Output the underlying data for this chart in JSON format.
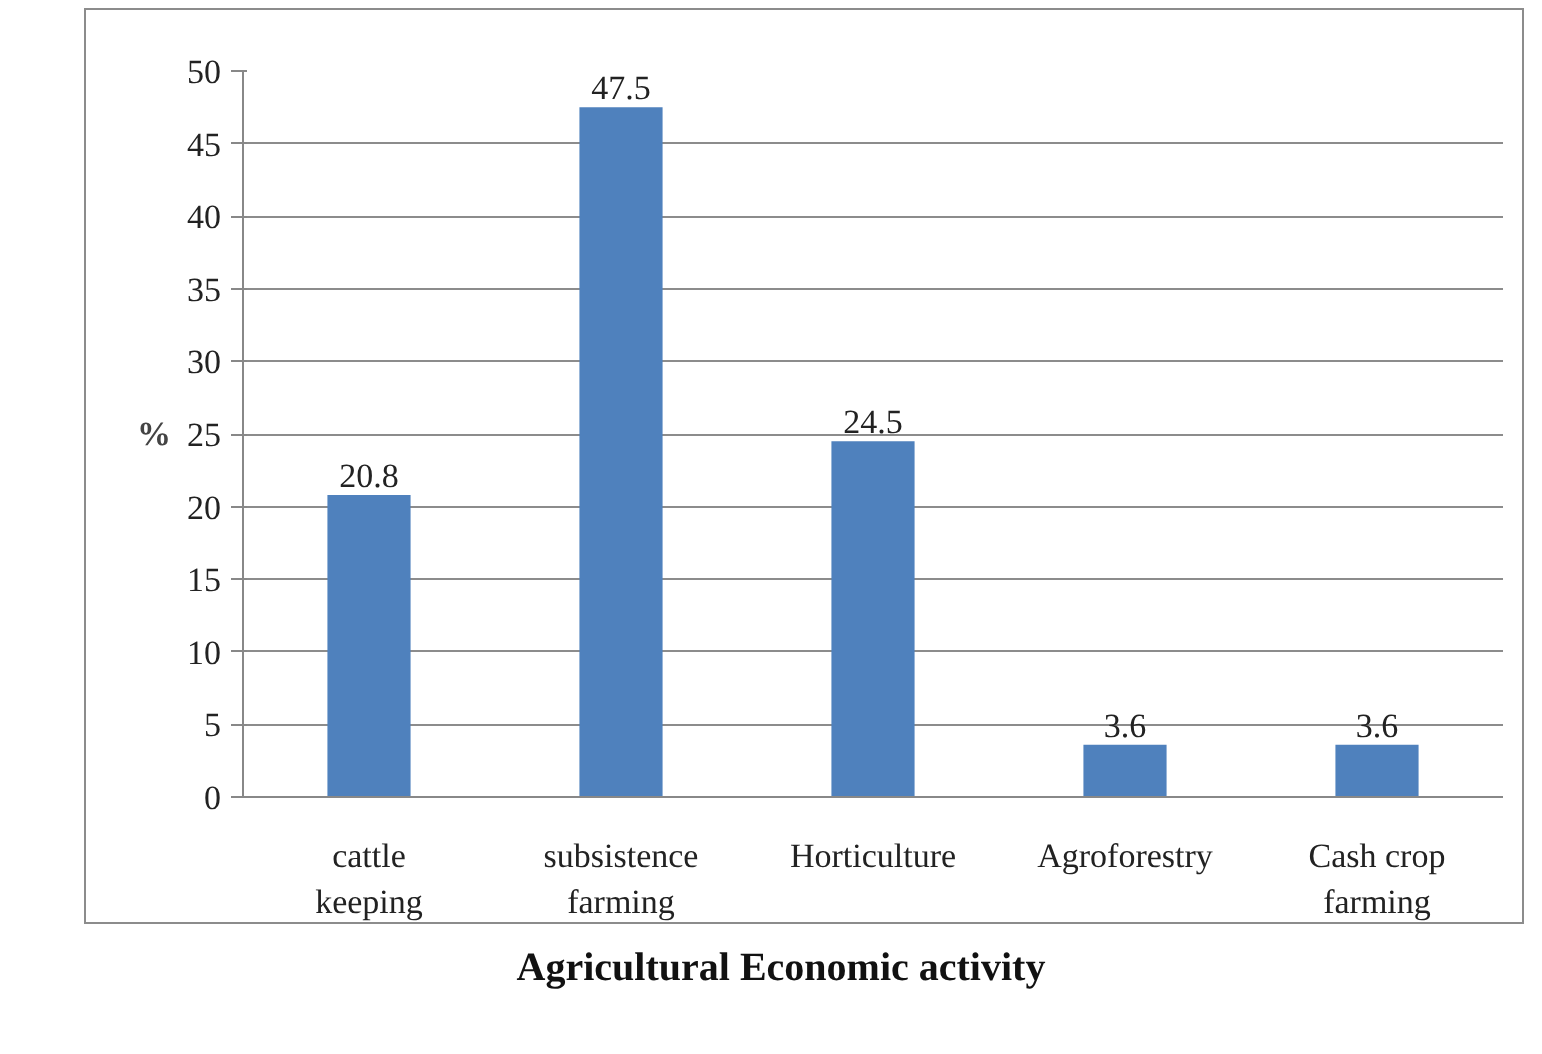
{
  "chart_data": {
    "type": "bar",
    "xlabel": "Agricultural Economic activity",
    "ylabel": "%",
    "categories": [
      "cattle\nkeeping",
      "subsistence\nfarming",
      "Horticulture",
      "Agroforestry",
      "Cash crop\nfarming"
    ],
    "values": [
      20.8,
      47.5,
      24.5,
      3.6,
      3.6
    ],
    "color": "#4f81bd",
    "ylim": [
      0,
      50
    ],
    "yticks": [
      0,
      5,
      10,
      15,
      20,
      25,
      30,
      35,
      40,
      45,
      50
    ],
    "grid": "y",
    "data_labels": true
  }
}
